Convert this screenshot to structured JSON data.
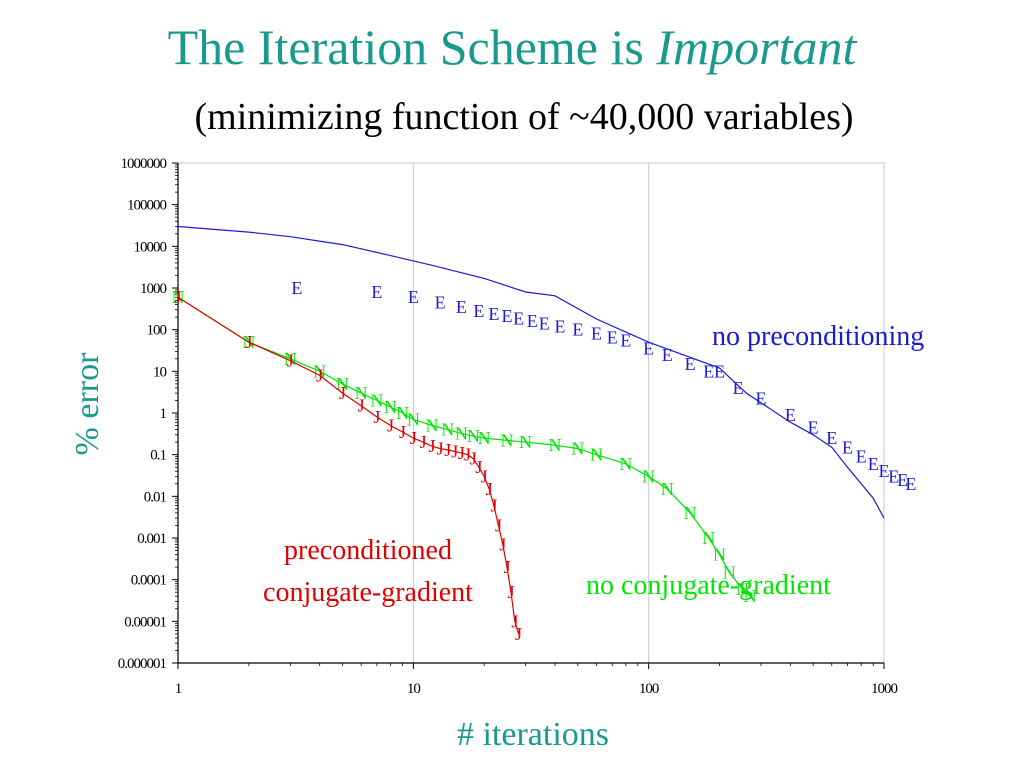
{
  "slide": {
    "title_main": "The Iteration Scheme is ",
    "title_emphasis": "Important",
    "subtitle": "(minimizing function of ~40,000 variables)"
  },
  "colors": {
    "title": "#1a9a8e",
    "axis_label": "#1a9a8e",
    "no_preconditioning": "#1a1ad6",
    "no_conjugate_gradient": "#00e600",
    "preconditioned_cg": "#e00000"
  },
  "chart_data": {
    "type": "line",
    "xlabel": "# iterations",
    "ylabel": "% error",
    "xscale": "log",
    "yscale": "log",
    "xlim": [
      1,
      1000
    ],
    "ylim": [
      1e-06,
      1000000
    ],
    "grid": "vertical",
    "x_ticks": [
      1,
      10,
      100,
      1000
    ],
    "x_tick_labels": [
      "1",
      "10",
      "100",
      "1000"
    ],
    "y_ticks": [
      1000000,
      100000,
      10000,
      1000,
      100,
      10,
      1,
      0.1,
      0.01,
      0.001,
      0.0001,
      1e-05,
      1e-06
    ],
    "y_tick_labels": [
      "1000000",
      "100000",
      "10000",
      "1000",
      "100",
      "10",
      "1",
      "0.1",
      "0.01",
      "0.001",
      "0.0001",
      "0.00001",
      "0.000001"
    ],
    "series": [
      {
        "name": "no preconditioning",
        "color": "#1a1ad6",
        "marker": "E",
        "x": [
          1,
          2,
          3,
          5,
          8,
          12,
          20,
          30,
          40,
          60,
          100,
          200,
          260,
          400,
          500,
          600,
          700,
          800,
          900,
          1000
        ],
        "y": [
          30000,
          22000,
          17000,
          11000,
          6000,
          3500,
          1700,
          800,
          650,
          180,
          50,
          12,
          3,
          0.6,
          0.3,
          0.15,
          0.05,
          0.02,
          0.009,
          0.003
        ],
        "marker_x": [
          3.2,
          7,
          10,
          13,
          16,
          19,
          22,
          25,
          28,
          32,
          36,
          42,
          50,
          60,
          70,
          80,
          100,
          120,
          150,
          180,
          200,
          240,
          300,
          400,
          500,
          600,
          700,
          800,
          900,
          1000,
          1100,
          1200,
          1300
        ],
        "marker_y": [
          1000,
          800,
          600,
          450,
          350,
          280,
          240,
          210,
          185,
          160,
          140,
          120,
          100,
          80,
          65,
          55,
          35,
          25,
          15,
          10,
          10,
          4,
          2.2,
          0.9,
          0.45,
          0.25,
          0.15,
          0.09,
          0.06,
          0.04,
          0.03,
          0.025,
          0.02
        ],
        "label_text": "no preconditioning",
        "label_data_xy": [
          345,
          150
        ]
      },
      {
        "name": "no conjugate-gradient",
        "color": "#00e600",
        "marker": "N",
        "x": [
          1,
          2,
          3,
          4,
          5,
          6,
          7,
          8,
          9,
          10,
          12,
          14,
          16,
          18,
          20,
          25,
          30,
          40,
          50,
          60,
          80,
          100,
          120,
          150,
          180,
          200,
          220,
          250,
          270
        ],
        "y": [
          600,
          50,
          20,
          10,
          5,
          3,
          2,
          1.4,
          1,
          0.7,
          0.5,
          0.4,
          0.32,
          0.28,
          0.25,
          0.22,
          0.2,
          0.17,
          0.14,
          0.1,
          0.06,
          0.03,
          0.015,
          0.004,
          0.001,
          0.0004,
          0.00015,
          6e-05,
          4e-05
        ],
        "label_text": "no conjugate-gradient",
        "label_data_xy": [
          115,
          5e-05
        ]
      },
      {
        "name": "preconditioned conjugate-gradient",
        "color": "#e00000",
        "marker": "J",
        "x": [
          1,
          2,
          3,
          4,
          5,
          6,
          7,
          8,
          9,
          10,
          11,
          12,
          13,
          14,
          15,
          16,
          17,
          18,
          19,
          20,
          21,
          22,
          23,
          24,
          25,
          26,
          27,
          28
        ],
        "y": [
          600,
          50,
          18,
          8,
          3,
          1.5,
          0.8,
          0.5,
          0.35,
          0.25,
          0.2,
          0.16,
          0.14,
          0.13,
          0.12,
          0.11,
          0.1,
          0.08,
          0.05,
          0.03,
          0.015,
          0.006,
          0.002,
          0.0007,
          0.0002,
          5e-05,
          1e-05,
          5e-06
        ],
        "label_lines": [
          "preconditioned",
          "conjugate-gradient"
        ],
        "label_data_xy": [
          4.3,
          0.00015
        ]
      }
    ]
  }
}
